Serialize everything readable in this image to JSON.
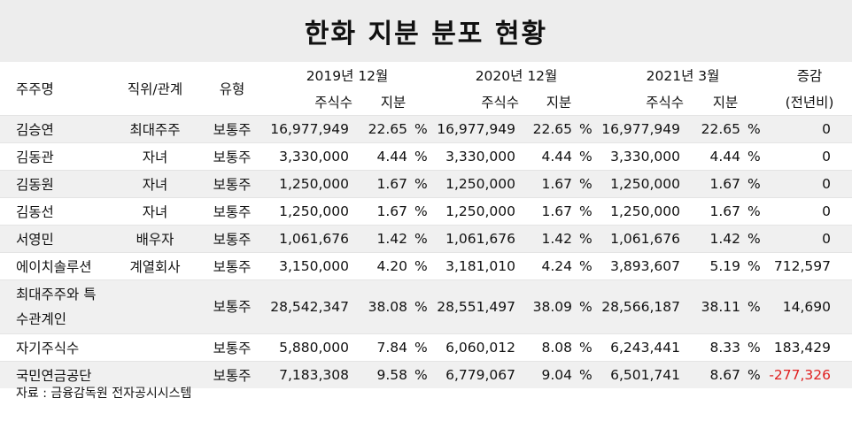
{
  "title": "한화 지분 분포 현황",
  "headers": {
    "holder": "주주명",
    "relation": "직위/관계",
    "type": "유형",
    "period_2019": "2019년 12월",
    "period_2020": "2020년 12월",
    "period_2021": "2021년 3월",
    "shares": "주식수",
    "stake": "지분",
    "change_line1": "증감",
    "change_line2": "(전년비)"
  },
  "percent_sign": "%",
  "rows": [
    {
      "holder": "김승연",
      "relation": "최대주주",
      "type": "보통주",
      "shares_2019": "16,977,949",
      "stake_2019": "22.65",
      "shares_2020": "16,977,949",
      "stake_2020": "22.65",
      "shares_2021": "16,977,949",
      "stake_2021": "22.65",
      "change": "0"
    },
    {
      "holder": "김동관",
      "relation": "자녀",
      "type": "보통주",
      "shares_2019": "3,330,000",
      "stake_2019": "4.44",
      "shares_2020": "3,330,000",
      "stake_2020": "4.44",
      "shares_2021": "3,330,000",
      "stake_2021": "4.44",
      "change": "0"
    },
    {
      "holder": "김동원",
      "relation": "자녀",
      "type": "보통주",
      "shares_2019": "1,250,000",
      "stake_2019": "1.67",
      "shares_2020": "1,250,000",
      "stake_2020": "1.67",
      "shares_2021": "1,250,000",
      "stake_2021": "1.67",
      "change": "0"
    },
    {
      "holder": "김동선",
      "relation": "자녀",
      "type": "보통주",
      "shares_2019": "1,250,000",
      "stake_2019": "1.67",
      "shares_2020": "1,250,000",
      "stake_2020": "1.67",
      "shares_2021": "1,250,000",
      "stake_2021": "1.67",
      "change": "0"
    },
    {
      "holder": "서영민",
      "relation": "배우자",
      "type": "보통주",
      "shares_2019": "1,061,676",
      "stake_2019": "1.42",
      "shares_2020": "1,061,676",
      "stake_2020": "1.42",
      "shares_2021": "1,061,676",
      "stake_2021": "1.42",
      "change": "0"
    },
    {
      "holder": "에이치솔루션",
      "relation": "계열회사",
      "type": "보통주",
      "shares_2019": "3,150,000",
      "stake_2019": "4.20",
      "shares_2020": "3,181,010",
      "stake_2020": "4.24",
      "shares_2021": "3,893,607",
      "stake_2021": "5.19",
      "change": "712,597"
    },
    {
      "holder": "최대주주와 특수관계인",
      "relation": "",
      "type": "보통주",
      "shares_2019": "28,542,347",
      "stake_2019": "38.08",
      "shares_2020": "28,551,497",
      "stake_2020": "38.09",
      "shares_2021": "28,566,187",
      "stake_2021": "38.11",
      "change": "14,690"
    },
    {
      "holder": "자기주식수",
      "relation": "",
      "type": "보통주",
      "shares_2019": "5,880,000",
      "stake_2019": "7.84",
      "shares_2020": "6,060,012",
      "stake_2020": "8.08",
      "shares_2021": "6,243,441",
      "stake_2021": "8.33",
      "change": "183,429"
    },
    {
      "holder": "국민연금공단",
      "relation": "",
      "type": "보통주",
      "shares_2019": "7,183,308",
      "stake_2019": "9.58",
      "shares_2020": "6,779,067",
      "stake_2020": "9.04",
      "shares_2021": "6,501,741",
      "stake_2021": "8.67",
      "change": "-277,326"
    }
  ],
  "source": "자료 : 금융감독원 전자공시시스템",
  "colors": {
    "title_bg": "#ededed",
    "shade_bg": "#f0f0f0",
    "negative": "#e02020"
  }
}
